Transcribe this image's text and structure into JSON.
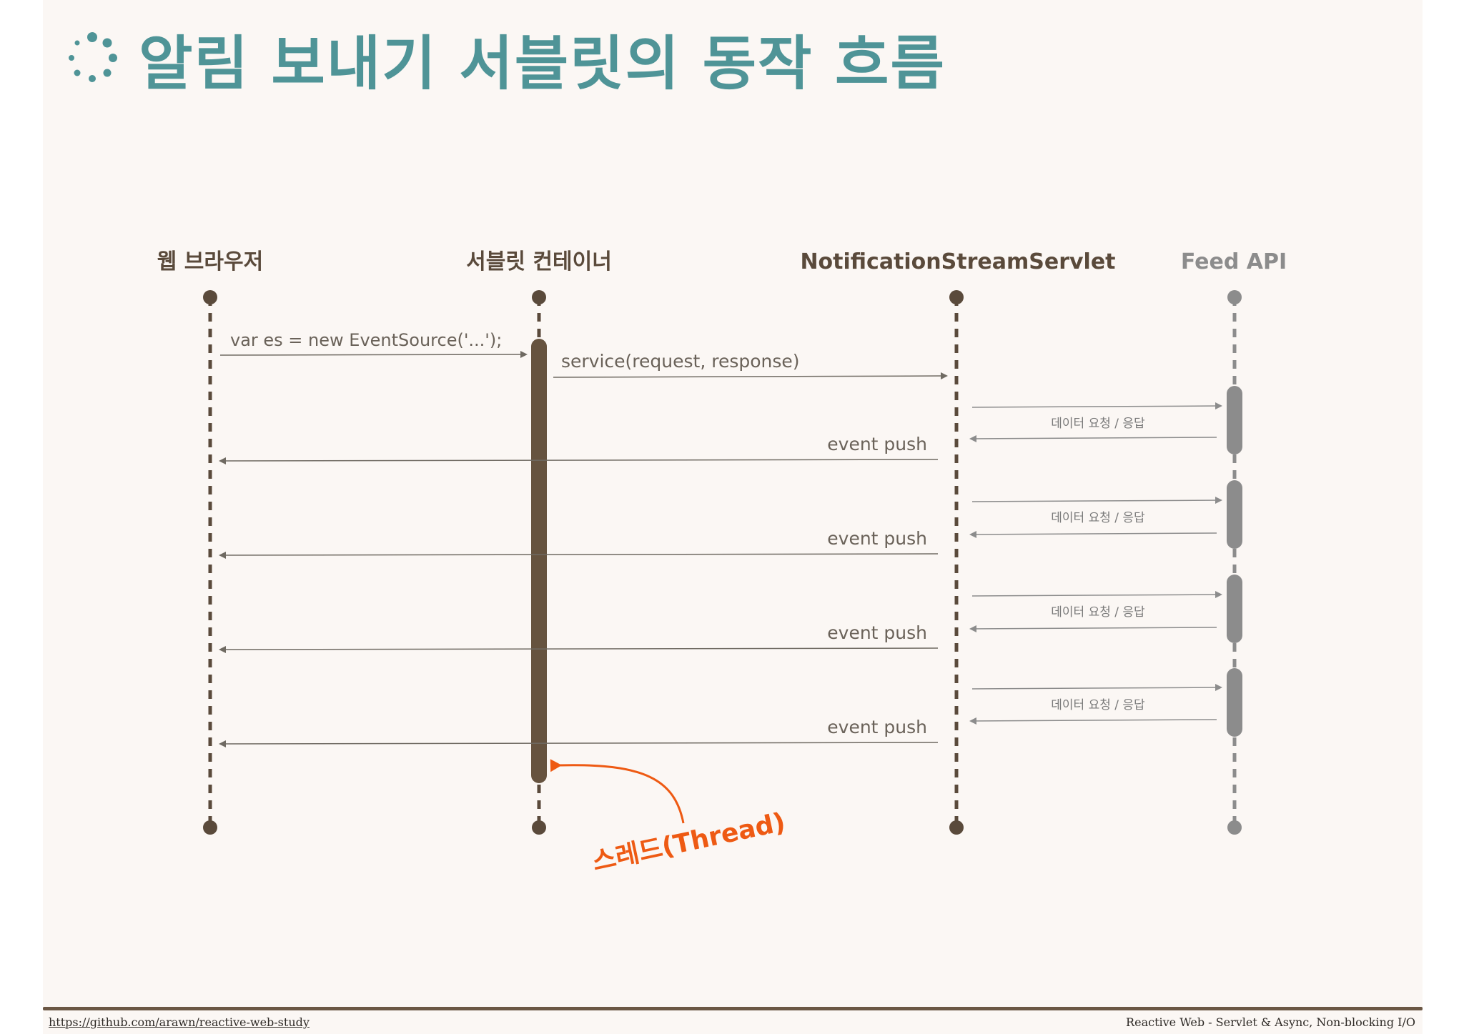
{
  "title": "알림 보내기 서블릿의 동작 흐름",
  "participants": [
    {
      "id": "browser",
      "label": "웹 브라우저",
      "color": "#5a4a3b"
    },
    {
      "id": "container",
      "label": "서블릿 컨테이너",
      "color": "#5a4a3b"
    },
    {
      "id": "servlet",
      "label": "NotificationStreamServlet",
      "color": "#5a4a3b"
    },
    {
      "id": "feed",
      "label": "Feed API",
      "color": "#8c8c8c"
    }
  ],
  "messages": [
    {
      "id": "event-source",
      "from": "browser",
      "to": "container",
      "label": "var es = new EventSource('...');"
    },
    {
      "id": "service-call",
      "from": "container",
      "to": "servlet",
      "label": "service(request, response)"
    },
    {
      "id": "data-1-req",
      "from": "servlet",
      "to": "feed",
      "label": ""
    },
    {
      "id": "data-1-res",
      "from": "feed",
      "to": "servlet",
      "label": "데이터 요청 / 응답"
    },
    {
      "id": "push-1",
      "from": "servlet",
      "to": "browser",
      "label": "event push"
    },
    {
      "id": "data-2-req",
      "from": "servlet",
      "to": "feed",
      "label": ""
    },
    {
      "id": "data-2-res",
      "from": "feed",
      "to": "servlet",
      "label": "데이터 요청 / 응답"
    },
    {
      "id": "push-2",
      "from": "servlet",
      "to": "browser",
      "label": "event push"
    },
    {
      "id": "data-3-req",
      "from": "servlet",
      "to": "feed",
      "label": ""
    },
    {
      "id": "data-3-res",
      "from": "feed",
      "to": "servlet",
      "label": "데이터 요청 / 응답"
    },
    {
      "id": "push-3",
      "from": "servlet",
      "to": "browser",
      "label": "event push"
    },
    {
      "id": "data-4-req",
      "from": "servlet",
      "to": "feed",
      "label": ""
    },
    {
      "id": "data-4-res",
      "from": "feed",
      "to": "servlet",
      "label": "데이터 요청 / 응답"
    },
    {
      "id": "push-4",
      "from": "servlet",
      "to": "browser",
      "label": "event push"
    }
  ],
  "annotation": {
    "label": "스레드(Thread)",
    "color": "#ee5a13"
  },
  "colors": {
    "title": "#4f9497",
    "lifeline": "#5a4a3b",
    "feed": "#8c8c8c",
    "arrow": "#6f6a62",
    "background": "#fbf7f4"
  },
  "footer": {
    "url": "https://github.com/arawn/reactive-web-study",
    "subtitle": "Reactive Web - Servlet & Async, Non-blocking I/O"
  }
}
